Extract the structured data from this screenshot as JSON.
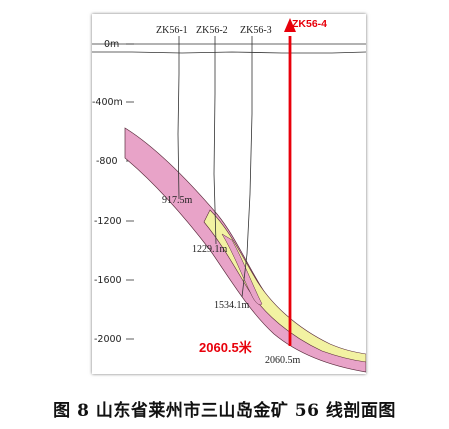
{
  "figure": {
    "caption": "图 8  山东省莱州市三山岛金矿 56 线剖面图",
    "y_axis_labels": [
      "0m",
      "-400m",
      "-800",
      "-1200",
      "-1600",
      "-2000"
    ],
    "boreholes": [
      {
        "name": "ZK56-1",
        "end_depth_label": "917.5m"
      },
      {
        "name": "ZK56-2",
        "end_depth_label": "1229.1m"
      },
      {
        "name": "ZK56-3",
        "end_depth_label": "1534.1m"
      },
      {
        "name": "ZK56-4",
        "end_depth_label": "2060.5m"
      }
    ],
    "highlight_label": "2060.5米",
    "colors": {
      "ore_zone_pink": "#e8a3c8",
      "gold_vein_yellow": "#f2f2a2",
      "borehole_red": "#e8000b",
      "line_dark": "#333333"
    }
  }
}
